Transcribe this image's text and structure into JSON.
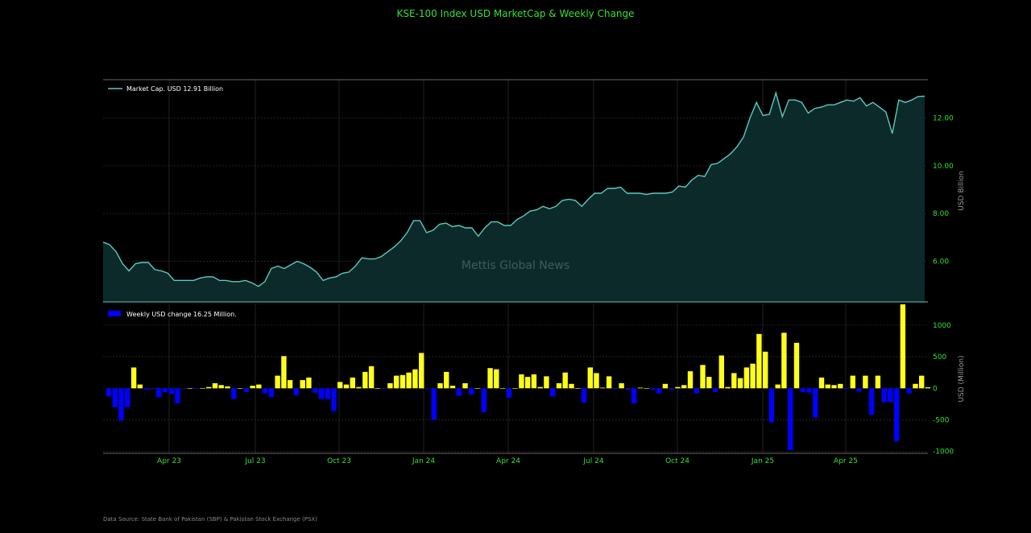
{
  "title": "KSE-100 Index USD MarketCap & Weekly Change",
  "source": "Data Source: State Bank of Pakistan (SBP) & Pakistan Stock Exchange (PSX)",
  "watermark": "Mettis Global News",
  "colors": {
    "title": "#33e233",
    "line": "#5ec9c0",
    "area": "#0c2a2a",
    "pos": "#ffff1a",
    "neg": "#0000ff",
    "tick": "#33e233",
    "axislabel": "#9a9a9a",
    "grid": "#2b2b2b",
    "text": "#ffffff"
  },
  "chart_data": [
    {
      "type": "area",
      "legend": "Market Cap. USD 12.91 Billion",
      "ylabel": "USD Billion",
      "yticks": [
        "6.00",
        "8.00",
        "10.00",
        "12.00"
      ],
      "ylim": [
        4.3,
        13.6
      ],
      "x_tick_labels": [
        "Apr 23",
        "Jul 23",
        "Oct 23",
        "Jan 24",
        "Apr 24",
        "Jul 24",
        "Oct 24",
        "Jan 25",
        "Apr 25"
      ],
      "series": [
        {
          "name": "Market Cap. USD 12.91 Billion",
          "values": [
            6.8,
            6.7,
            6.4,
            5.9,
            5.6,
            5.9,
            5.95,
            5.95,
            5.65,
            5.6,
            5.5,
            5.2,
            5.2,
            5.2,
            5.2,
            5.3,
            5.35,
            5.35,
            5.2,
            5.2,
            5.15,
            5.15,
            5.2,
            5.1,
            4.95,
            5.15,
            5.7,
            5.8,
            5.7,
            5.85,
            6.0,
            5.9,
            5.75,
            5.55,
            5.2,
            5.3,
            5.35,
            5.5,
            5.55,
            5.8,
            6.15,
            6.1,
            6.1,
            6.2,
            6.4,
            6.6,
            6.85,
            7.2,
            7.7,
            7.7,
            7.2,
            7.3,
            7.55,
            7.6,
            7.45,
            7.5,
            7.4,
            7.4,
            7.05,
            7.4,
            7.65,
            7.65,
            7.5,
            7.5,
            7.75,
            7.9,
            8.1,
            8.15,
            8.3,
            8.2,
            8.3,
            8.55,
            8.6,
            8.55,
            8.3,
            8.6,
            8.85,
            8.85,
            9.05,
            9.05,
            9.1,
            8.85,
            8.85,
            8.85,
            8.8,
            8.85,
            8.85,
            8.85,
            8.9,
            9.15,
            9.1,
            9.4,
            9.6,
            9.55,
            10.05,
            10.1,
            10.3,
            10.5,
            10.8,
            11.2,
            12.0,
            12.65,
            12.1,
            12.15,
            13.05,
            12.05,
            12.75,
            12.75,
            12.65,
            12.2,
            12.4,
            12.45,
            12.55,
            12.55,
            12.65,
            12.75,
            12.7,
            12.85,
            12.5,
            12.65,
            12.45,
            12.25,
            11.35,
            12.75,
            12.65,
            12.75,
            12.9,
            12.91
          ]
        }
      ]
    },
    {
      "type": "bar",
      "legend": "Weekly USD change 16.25 Million.",
      "ylabel": "USD (Million)",
      "yticks": [
        "1000",
        "500",
        "0",
        "-500",
        "-1000"
      ],
      "ylim": [
        -1030,
        1330
      ],
      "series": [
        {
          "name": "Weekly USD change 16.25 Million.",
          "values": [
            -130,
            -300,
            -510,
            -300,
            330,
            60,
            -20,
            -10,
            -140,
            -60,
            -90,
            -240,
            -5,
            0,
            -5,
            0,
            20,
            80,
            50,
            30,
            -170,
            0,
            -60,
            40,
            60,
            -80,
            -140,
            200,
            510,
            130,
            -110,
            130,
            170,
            -70,
            -170,
            -170,
            -360,
            100,
            60,
            170,
            20,
            260,
            350,
            0,
            -10,
            80,
            200,
            210,
            250,
            300,
            560,
            -10,
            -500,
            80,
            260,
            40,
            -120,
            80,
            -100,
            0,
            -380,
            320,
            300,
            0,
            -150,
            0,
            220,
            180,
            220,
            20,
            190,
            -130,
            80,
            250,
            70,
            0,
            -230,
            330,
            240,
            10,
            190,
            -10,
            80,
            -20,
            -240,
            10,
            0,
            -20,
            -80,
            70,
            -20,
            20,
            50,
            270,
            -80,
            370,
            180,
            -60,
            520,
            20,
            240,
            160,
            330,
            390,
            860,
            580,
            -540,
            60,
            880,
            -980,
            720,
            -60,
            -70,
            -460,
            170,
            60,
            50,
            70,
            -10,
            200,
            -50,
            200,
            -420,
            200,
            -220,
            -220,
            -840,
            1330,
            -80,
            70,
            200,
            16
          ]
        }
      ]
    }
  ]
}
